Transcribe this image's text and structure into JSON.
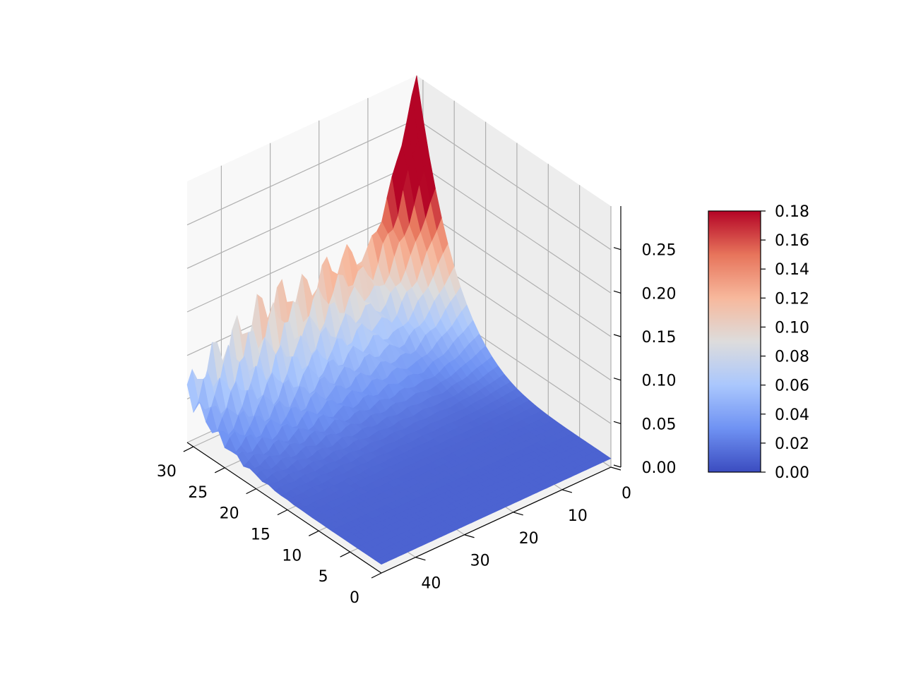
{
  "chart_data": {
    "type": "surface3d",
    "title": "",
    "xlabel": "",
    "ylabel": "",
    "zlabel": "",
    "colormap": "coolwarm",
    "colormap_colors": [
      "#3b4cc0",
      "#6f92f3",
      "#aac7fd",
      "#dddcdc",
      "#f7b89c",
      "#e7745b",
      "#b40426"
    ],
    "x_axis": {
      "range": [
        0,
        31
      ],
      "ticks": [
        0,
        5,
        10,
        15,
        20,
        25,
        30
      ],
      "tick_labels": [
        "0",
        "5",
        "10",
        "15",
        "20",
        "25",
        "30"
      ]
    },
    "y_axis": {
      "range": [
        0,
        47
      ],
      "ticks": [
        0,
        10,
        20,
        30,
        40
      ],
      "tick_labels": [
        "0",
        "10",
        "20",
        "30",
        "40"
      ]
    },
    "z_axis": {
      "range": [
        0,
        0.3
      ],
      "ticks": [
        0,
        0.05,
        0.1,
        0.15,
        0.2,
        0.25
      ],
      "tick_labels": [
        "0.00",
        "0.05",
        "0.10",
        "0.15",
        "0.20",
        "0.25"
      ]
    },
    "colorbar": {
      "range": [
        0,
        0.18
      ],
      "ticks": [
        0,
        0.02,
        0.04,
        0.06,
        0.08,
        0.1,
        0.12,
        0.14,
        0.16,
        0.18
      ],
      "tick_labels": [
        "0.00",
        "0.02",
        "0.04",
        "0.06",
        "0.08",
        "0.10",
        "0.12",
        "0.14",
        "0.16",
        "0.18"
      ]
    },
    "surface": {
      "description": "z is near 0.01 over most of the grid and rises steeply toward x=31 (back wall); ridge values along x=31 as a function of y",
      "ridge_y": [
        0,
        5,
        10,
        15,
        20,
        25,
        30,
        35,
        40,
        47
      ],
      "ridge_z": [
        0.3,
        0.19,
        0.12,
        0.13,
        0.12,
        0.11,
        0.12,
        0.1,
        0.09,
        0.06
      ],
      "floor_z": 0.01
    },
    "grid": true
  }
}
